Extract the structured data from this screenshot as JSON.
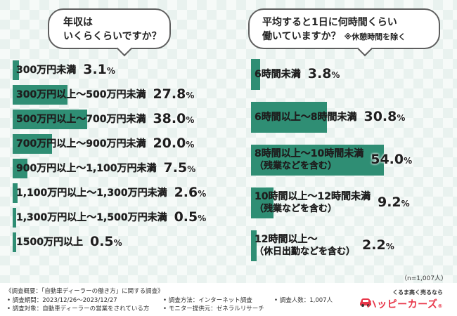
{
  "chart_data": [
    {
      "type": "bar",
      "orientation": "horizontal",
      "title": [
        "年収は",
        "いくらくらいですか？"
      ],
      "categories": [
        "300万円未満",
        "300万円以上～500万円未満",
        "500万円以上～700万円未満",
        "700万円以上～900万円未満",
        "900万円以上～1,100万円未満",
        "1,100万円以上～1,300万円未満",
        "1,300万円以上～1,500万円未満",
        "1500万円以上"
      ],
      "values": [
        3.1,
        27.8,
        38.0,
        20.0,
        7.5,
        2.6,
        0.5,
        0.5
      ],
      "value_labels": [
        {
          "main": "3.1",
          "unit": "%"
        },
        {
          "main": "27.8",
          "unit": "%"
        },
        {
          "main": "38.0",
          "unit": "%"
        },
        {
          "main": "20.0",
          "unit": "%"
        },
        {
          "main": "7.5",
          "unit": "%"
        },
        {
          "main": "2.6",
          "unit": "%"
        },
        {
          "main": "0.5",
          "unit": "%"
        },
        {
          "main": "0.5",
          "unit": "%"
        }
      ],
      "xlim": [
        0,
        100
      ],
      "unit": "%",
      "bar_color": "#2f8e74",
      "grid": false,
      "legend": "none"
    },
    {
      "type": "bar",
      "orientation": "horizontal",
      "title": [
        "平均すると1日に何時間くらい",
        "働いていますか？"
      ],
      "title_note": "※休憩時間を除く",
      "categories": [
        [
          "6時間未満"
        ],
        [
          "6時間以上～8時間未満"
        ],
        [
          "8時間以上～10時間未満",
          "（残業などを含む）"
        ],
        [
          "10時間以上～12時間未満",
          "（残業などを含む）"
        ],
        [
          "12時間以上～",
          "（休日出勤などを含む）"
        ]
      ],
      "values": [
        3.8,
        30.8,
        54.0,
        9.2,
        2.2
      ],
      "value_labels": [
        {
          "main": "3.8",
          "unit": "%"
        },
        {
          "main": "30.8",
          "unit": "%"
        },
        {
          "main": "54.0",
          "unit": "%"
        },
        {
          "main": "9.2",
          "unit": "%"
        },
        {
          "main": "2.2",
          "unit": "%"
        }
      ],
      "xlim": [
        0,
        100
      ],
      "unit": "%",
      "bar_color": "#2f8e74",
      "grid": false,
      "legend": "none"
    }
  ],
  "sample_size": "（n=1,007人）",
  "survey": {
    "title": "《調査概要：「自動車ディーラーの働き方」に関する調査》",
    "period": "• 調査期間：2023/12/26～2023/12/27",
    "target": "• 調査対象：自動車ディーラーの営業をされている方",
    "method": "• 調査方法：インターネット調査",
    "provider": "• モニター提供元：ゼネラルリサーチ",
    "count": "• 調査人数：1,007人"
  },
  "logo": {
    "catch": "くるま高く売るなら",
    "brand": "ハッピーカーズ",
    "brand_suffix": "®",
    "color": "#e8374a"
  }
}
